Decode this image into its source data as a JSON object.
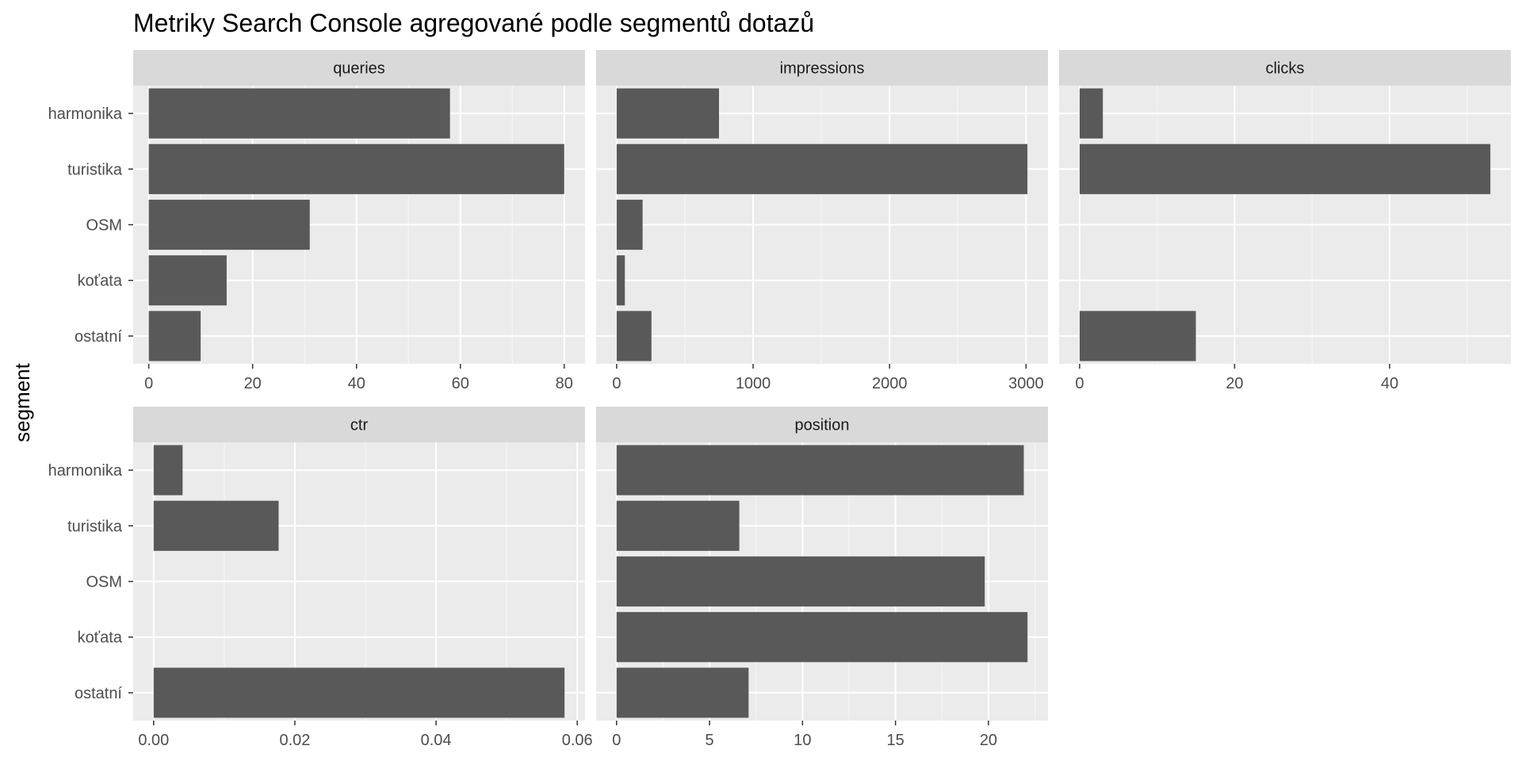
{
  "chart_data": {
    "type": "bar",
    "title": "Metriky Search Console agregované podle segmentů dotazů",
    "ylabel": "segment",
    "xlabel": "",
    "categories": [
      "harmonika",
      "turistika",
      "OSM",
      "koťata",
      "ostatní"
    ],
    "grid": true,
    "colors": {
      "bar": "#595959",
      "panel": "#ebebeb",
      "strip": "#d9d9d9",
      "grid_major": "#ffffff"
    },
    "panels": [
      {
        "name": "queries",
        "values": [
          58,
          80,
          31,
          15,
          10
        ],
        "xlim": [
          -3.0,
          84.0
        ],
        "ticks": [
          0,
          20,
          40,
          60,
          80
        ],
        "tick_labels": [
          "0",
          "20",
          "40",
          "60",
          "80"
        ]
      },
      {
        "name": "impressions",
        "values": [
          750,
          3010,
          190,
          60,
          255
        ],
        "xlim": [
          -150.5,
          3160.5
        ],
        "ticks": [
          0,
          1000,
          2000,
          3000
        ],
        "tick_labels": [
          "0",
          "1000",
          "2000",
          "3000"
        ]
      },
      {
        "name": "clicks",
        "values": [
          3,
          53,
          0,
          0,
          15
        ],
        "xlim": [
          -2.65,
          55.65
        ],
        "ticks": [
          0,
          20,
          40
        ],
        "tick_labels": [
          "0",
          "20",
          "40"
        ]
      },
      {
        "name": "ctr",
        "values": [
          0.0041,
          0.0177,
          0,
          0,
          0.0582
        ],
        "xlim": [
          -0.0029,
          0.0611
        ],
        "ticks": [
          0.0,
          0.02,
          0.04,
          0.06
        ],
        "tick_labels": [
          "0.00",
          "0.02",
          "0.04",
          "0.06"
        ]
      },
      {
        "name": "position",
        "values": [
          21.9,
          6.6,
          19.8,
          22.1,
          7.1
        ],
        "xlim": [
          -1.1,
          23.2
        ],
        "ticks": [
          0,
          5,
          10,
          15,
          20
        ],
        "tick_labels": [
          "0",
          "5",
          "10",
          "15",
          "20"
        ]
      }
    ]
  }
}
